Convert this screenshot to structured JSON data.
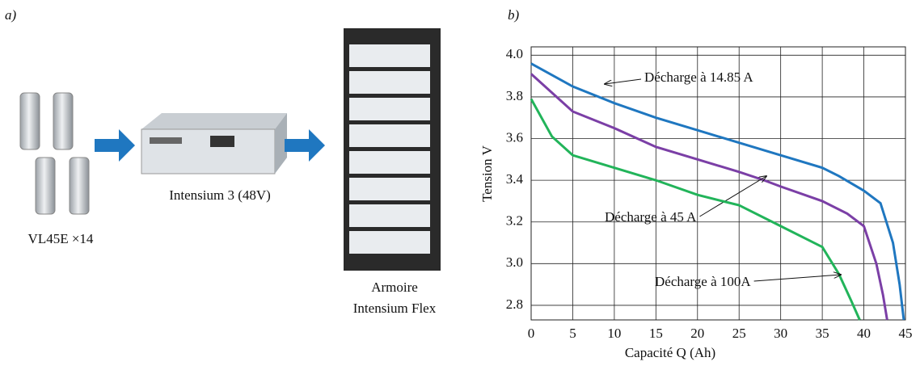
{
  "panel_a": {
    "label": "a)",
    "cells_label": "VL45E ×14",
    "module_label": "Intensium 3  (48V)",
    "cabinet_label": [
      "Armoire",
      "Intensium Flex"
    ]
  },
  "chart_data": {
    "type": "line",
    "panel_label": "b)",
    "xlabel": "Capacité Q  (Ah)",
    "ylabel": "Tension V",
    "xlim": [
      0,
      45
    ],
    "xticks": [
      0,
      5,
      10,
      15,
      20,
      25,
      30,
      35,
      40,
      45
    ],
    "ylim": [
      2.73,
      4.04
    ],
    "yticks": [
      {
        "value": 2.8,
        "label": "2.8"
      },
      {
        "value": 3,
        "label": "3.0"
      },
      3.2,
      3.4,
      3.6,
      {
        "value": 3.8,
        "label": "3.8"
      },
      {
        "value": 4,
        "label": "4.0"
      }
    ],
    "grid": true,
    "series": [
      {
        "name": "Décharge à 14.85 A",
        "color": "#1f77c0",
        "x": [
          0,
          5,
          10,
          15,
          20,
          25,
          30,
          35,
          37,
          40,
          42,
          43.5,
          44.3,
          44.8
        ],
        "values": [
          3.96,
          3.85,
          3.77,
          3.7,
          3.64,
          3.58,
          3.52,
          3.46,
          3.42,
          3.35,
          3.29,
          3.1,
          2.9,
          2.73
        ]
      },
      {
        "name": "Décharge à 45 A",
        "color": "#7b3fa6",
        "x": [
          0,
          5,
          10,
          15,
          20,
          25,
          28,
          30,
          35,
          38,
          40,
          41.5,
          42.3,
          42.8
        ],
        "values": [
          3.91,
          3.73,
          3.65,
          3.56,
          3.5,
          3.44,
          3.4,
          3.37,
          3.3,
          3.24,
          3.18,
          3.0,
          2.85,
          2.73
        ]
      },
      {
        "name": "Décharge à 100A",
        "color": "#22b45a",
        "x": [
          0,
          2.5,
          5,
          10,
          15,
          20,
          25,
          30,
          35,
          37,
          38.5,
          39.5
        ],
        "values": [
          3.79,
          3.61,
          3.52,
          3.46,
          3.4,
          3.33,
          3.28,
          3.18,
          3.08,
          2.95,
          2.82,
          2.73
        ]
      }
    ]
  }
}
